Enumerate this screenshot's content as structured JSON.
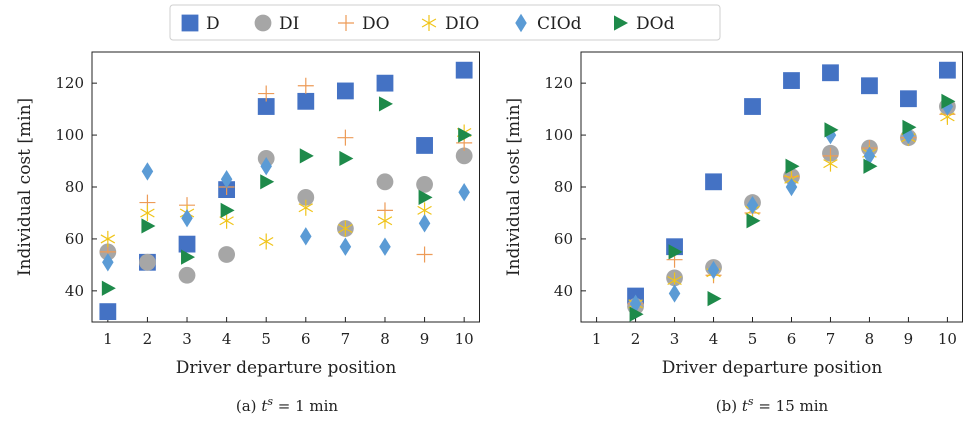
{
  "legend": [
    {
      "key": "D",
      "label": "D",
      "color": "#4472c4",
      "marker": "square"
    },
    {
      "key": "DI",
      "label": "DI",
      "color": "#a6a6a6",
      "marker": "circle"
    },
    {
      "key": "DO",
      "label": "DO",
      "color": "#ed9b57",
      "marker": "plus"
    },
    {
      "key": "DIO",
      "label": "DIO",
      "color": "#f0c419",
      "marker": "asterisk"
    },
    {
      "key": "CIOd",
      "label": "CIOd",
      "color": "#5b9bd5",
      "marker": "diamond"
    },
    {
      "key": "DOd",
      "label": "DOd",
      "color": "#1e8a4a",
      "marker": "triangle-right"
    }
  ],
  "chart_data": [
    {
      "type": "scatter",
      "caption_prefix": "(a) ",
      "caption_suffix": " = 1 min",
      "xlabel": "Driver departure position",
      "ylabel": "Individual cost [min]",
      "xlim": [
        0.6,
        10.4
      ],
      "ylim": [
        28,
        132
      ],
      "xticks": [
        1,
        2,
        3,
        4,
        5,
        6,
        7,
        8,
        9,
        10
      ],
      "yticks": [
        40,
        60,
        80,
        100,
        120
      ],
      "grid": false,
      "series": [
        {
          "name": "D",
          "x": [
            1,
            2,
            3,
            4,
            5,
            6,
            7,
            8,
            9,
            10
          ],
          "y": [
            32,
            51,
            58,
            79,
            111,
            113,
            117,
            120,
            96,
            125
          ]
        },
        {
          "name": "DI",
          "x": [
            1,
            2,
            3,
            4,
            5,
            6,
            7,
            8,
            9,
            10
          ],
          "y": [
            55,
            51,
            46,
            54,
            91,
            76,
            64,
            82,
            81,
            92
          ]
        },
        {
          "name": "DO",
          "x": [
            1,
            2,
            3,
            4,
            5,
            6,
            7,
            8,
            9,
            10
          ],
          "y": [
            55,
            74,
            73,
            80,
            116,
            119,
            99,
            71,
            54,
            97
          ]
        },
        {
          "name": "DIO",
          "x": [
            1,
            2,
            3,
            4,
            5,
            6,
            7,
            8,
            9,
            10
          ],
          "y": [
            60,
            70,
            70,
            67,
            59,
            72,
            64,
            67,
            71,
            101
          ]
        },
        {
          "name": "CIOd",
          "x": [
            1,
            2,
            3,
            4,
            5,
            6,
            7,
            8,
            9,
            10
          ],
          "y": [
            51,
            86,
            68,
            83,
            88,
            61,
            57,
            57,
            66,
            78
          ]
        },
        {
          "name": "DOd",
          "x": [
            1,
            2,
            3,
            4,
            5,
            6,
            7,
            8,
            9,
            10
          ],
          "y": [
            41,
            65,
            53,
            71,
            82,
            92,
            91,
            112,
            76,
            100
          ]
        }
      ]
    },
    {
      "type": "scatter",
      "caption_prefix": "(b) ",
      "caption_suffix": " = 15 min",
      "xlabel": "Driver departure position",
      "ylabel": "Individual cost [min]",
      "xlim": [
        0.6,
        10.4
      ],
      "ylim": [
        28,
        132
      ],
      "xticks": [
        1,
        2,
        3,
        4,
        5,
        6,
        7,
        8,
        9,
        10
      ],
      "yticks": [
        40,
        60,
        80,
        100,
        120
      ],
      "grid": false,
      "series": [
        {
          "name": "D",
          "x": [
            2,
            3,
            4,
            5,
            6,
            7,
            8,
            9,
            10
          ],
          "y": [
            38,
            57,
            82,
            111,
            121,
            124,
            119,
            114,
            125
          ]
        },
        {
          "name": "DI",
          "x": [
            2,
            3,
            4,
            5,
            6,
            7,
            8,
            9,
            10
          ],
          "y": [
            34,
            45,
            49,
            74,
            84,
            93,
            95,
            99,
            111
          ]
        },
        {
          "name": "DO",
          "x": [
            2,
            3,
            4,
            5,
            6,
            7,
            8,
            9,
            10
          ],
          "y": [
            35,
            52,
            46,
            70,
            84,
            92,
            95,
            99,
            108
          ]
        },
        {
          "name": "DIO",
          "x": [
            2,
            3,
            4,
            5,
            6,
            7,
            8,
            9,
            10
          ],
          "y": [
            35,
            44,
            47,
            71,
            83,
            89,
            93,
            99,
            107
          ]
        },
        {
          "name": "CIOd",
          "x": [
            2,
            3,
            4,
            5,
            6,
            7,
            8,
            9,
            10
          ],
          "y": [
            35,
            39,
            48,
            73,
            80,
            100,
            92,
            100,
            111
          ]
        },
        {
          "name": "DOd",
          "x": [
            2,
            3,
            4,
            5,
            6,
            7,
            8,
            9,
            10
          ],
          "y": [
            31,
            55,
            37,
            67,
            88,
            102,
            88,
            103,
            113
          ]
        }
      ]
    }
  ]
}
